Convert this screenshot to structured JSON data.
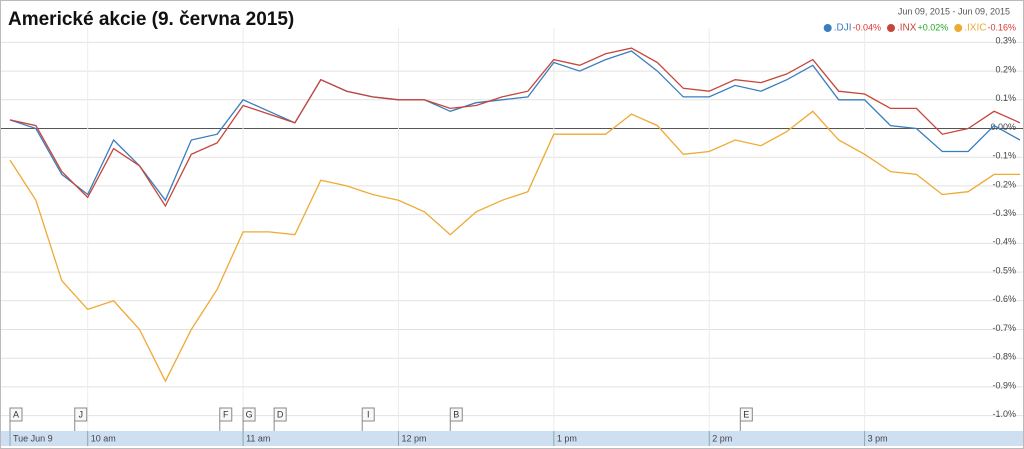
{
  "chart_data": {
    "type": "line",
    "title": "Americké akcie (9. června 2015)",
    "date_range": "Jun 09, 2015  -  Jun 09, 2015",
    "x": [
      570,
      580,
      590,
      600,
      610,
      620,
      630,
      640,
      650,
      660,
      670,
      680,
      690,
      700,
      710,
      720,
      730,
      740,
      750,
      760,
      770,
      780,
      790,
      800,
      810,
      820,
      830,
      840,
      850,
      860,
      870,
      880,
      890,
      900,
      910,
      920,
      930,
      940,
      950,
      960
    ],
    "xlim": [
      570,
      960
    ],
    "xticks": [
      {
        "value": 570,
        "label": "Tue Jun 9"
      },
      {
        "value": 600,
        "label": "10 am"
      },
      {
        "value": 660,
        "label": "11 am"
      },
      {
        "value": 720,
        "label": "12 pm"
      },
      {
        "value": 780,
        "label": "1 pm"
      },
      {
        "value": 840,
        "label": "2 pm"
      },
      {
        "value": 900,
        "label": "3 pm"
      }
    ],
    "ylim": [
      -1.05,
      0.35
    ],
    "yticks": [
      {
        "value": 0.3,
        "label": "0.3%"
      },
      {
        "value": 0.2,
        "label": "0.2%"
      },
      {
        "value": 0.1,
        "label": "0.1%"
      },
      {
        "value": 0,
        "label": "0.00%"
      },
      {
        "value": -0.1,
        "label": "-0.1%"
      },
      {
        "value": -0.2,
        "label": "-0.2%"
      },
      {
        "value": -0.3,
        "label": "-0.3%"
      },
      {
        "value": -0.4,
        "label": "-0.4%"
      },
      {
        "value": -0.5,
        "label": "-0.5%"
      },
      {
        "value": -0.6,
        "label": "-0.6%"
      },
      {
        "value": -0.7,
        "label": "-0.7%"
      },
      {
        "value": -0.8,
        "label": "-0.8%"
      },
      {
        "value": -0.9,
        "label": "-0.9%"
      },
      {
        "value": -1.0,
        "label": "-1.0%"
      }
    ],
    "grid": true,
    "series": [
      {
        "name": ".DJI",
        "change": "-0.04%",
        "color": "#3a7ebf",
        "values": [
          0.03,
          0.0,
          -0.16,
          -0.23,
          -0.04,
          -0.13,
          -0.25,
          -0.04,
          -0.02,
          0.1,
          0.06,
          0.02,
          0.17,
          0.13,
          0.11,
          0.1,
          0.1,
          0.06,
          0.09,
          0.1,
          0.11,
          0.23,
          0.2,
          0.24,
          0.27,
          0.2,
          0.11,
          0.11,
          0.15,
          0.13,
          0.17,
          0.22,
          0.1,
          0.1,
          0.01,
          0.0,
          -0.08,
          -0.08,
          0.01,
          -0.04
        ]
      },
      {
        "name": ".INX",
        "change": "+0.02%",
        "color": "#c8453a",
        "values": [
          0.03,
          0.01,
          -0.15,
          -0.24,
          -0.07,
          -0.13,
          -0.27,
          -0.09,
          -0.05,
          0.08,
          0.05,
          0.02,
          0.17,
          0.13,
          0.11,
          0.1,
          0.1,
          0.07,
          0.08,
          0.11,
          0.13,
          0.24,
          0.22,
          0.26,
          0.28,
          0.23,
          0.14,
          0.13,
          0.17,
          0.16,
          0.19,
          0.24,
          0.13,
          0.12,
          0.07,
          0.07,
          -0.02,
          0.0,
          0.06,
          0.02
        ]
      },
      {
        "name": ".IXIC",
        "change": "-0.16%",
        "color": "#eeaa33",
        "values": [
          -0.11,
          -0.25,
          -0.53,
          -0.63,
          -0.6,
          -0.7,
          -0.88,
          -0.7,
          -0.56,
          -0.36,
          -0.36,
          -0.37,
          -0.18,
          -0.2,
          -0.23,
          -0.25,
          -0.29,
          -0.37,
          -0.29,
          -0.25,
          -0.22,
          -0.02,
          -0.02,
          -0.02,
          0.05,
          0.01,
          -0.09,
          -0.08,
          -0.04,
          -0.06,
          -0.01,
          0.06,
          -0.04,
          -0.09,
          -0.15,
          -0.16,
          -0.23,
          -0.22,
          -0.16,
          -0.16
        ]
      }
    ],
    "flags": [
      {
        "label": "A",
        "x": 570
      },
      {
        "label": "J",
        "x": 595
      },
      {
        "label": "F",
        "x": 651
      },
      {
        "label": "G",
        "x": 660
      },
      {
        "label": "D",
        "x": 672
      },
      {
        "label": "I",
        "x": 706
      },
      {
        "label": "B",
        "x": 740
      },
      {
        "label": "E",
        "x": 852
      }
    ]
  }
}
